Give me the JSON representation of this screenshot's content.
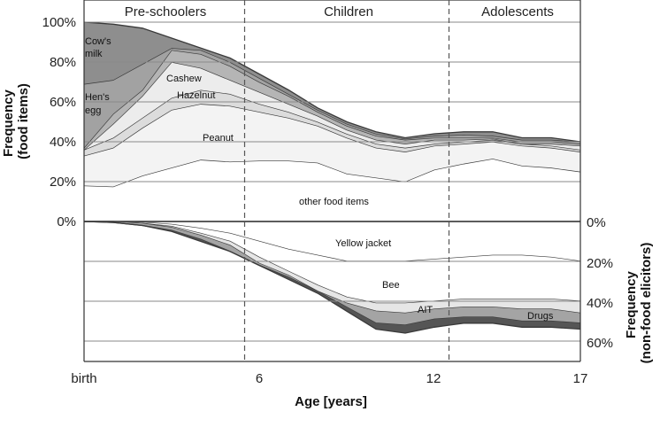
{
  "chart_data": {
    "type": "area",
    "x": [
      0,
      1,
      2,
      3,
      4,
      5,
      6,
      7,
      8,
      9,
      10,
      11,
      12,
      13,
      14,
      15,
      16,
      17
    ],
    "x_ticks": [
      "birth",
      "6",
      "12",
      "17"
    ],
    "xlabel": "Age [years]",
    "ylabel_top": "Frequency\n(food items)",
    "ylabel_bottom": "Frequency\n(non-food elicitors)",
    "yticks_top": [
      "0%",
      "20%",
      "40%",
      "60%",
      "80%",
      "100%"
    ],
    "yticks_bottom": [
      "0%",
      "20%",
      "40%",
      "60%"
    ],
    "age_groups": [
      {
        "label": "Pre-schoolers"
      },
      {
        "label": "Children"
      },
      {
        "label": "Adolescents"
      }
    ],
    "divider_ages": [
      5.5,
      12.5
    ],
    "food_items_cumulative": [
      {
        "name": "other food items",
        "label": "other food items",
        "color": "#ffffff",
        "upper": [
          18,
          17.5,
          23,
          27,
          31,
          30,
          30.5,
          30.5,
          29.5,
          24,
          22,
          20,
          26,
          29,
          31.5,
          28,
          27,
          25
        ]
      },
      {
        "name": "Peanut",
        "label": "Peanut",
        "color": "#f3f3f3",
        "upper": [
          33,
          37,
          47,
          56,
          59,
          58,
          55,
          52,
          48,
          42,
          37,
          35,
          38,
          39,
          40,
          38,
          37,
          35
        ]
      },
      {
        "name": "Hazelnut",
        "label": "Hazelnut",
        "color": "#dcdcdc",
        "upper": [
          36,
          42,
          52,
          62,
          66,
          64,
          59,
          55,
          50,
          44,
          39,
          37,
          39,
          40,
          41,
          39,
          38,
          36
        ]
      },
      {
        "name": "Cashew",
        "label": "Cashew",
        "color": "#ececec",
        "upper": [
          36,
          49,
          63,
          80,
          77,
          71,
          65,
          59,
          53,
          46,
          41,
          39,
          41,
          41,
          41.5,
          39,
          39,
          38
        ]
      },
      {
        "name": "Hen's egg",
        "label": "Hen's egg",
        "color": "#b5b5b5",
        "upper": [
          37,
          54,
          66,
          86,
          84,
          78,
          70,
          63,
          55,
          48,
          43,
          41,
          42,
          42,
          42,
          40,
          40,
          39
        ]
      },
      {
        "name": "Cow's milk",
        "label": "Cow's milk",
        "color": "#a2a2a2",
        "upper": [
          69,
          71,
          79,
          87,
          86,
          80,
          72,
          64,
          56,
          49,
          44,
          41.5,
          43,
          43.5,
          43,
          41,
          41,
          40
        ]
      },
      {
        "name": "other top band",
        "label": "",
        "color": "#8e8e8e",
        "upper": [
          100,
          99,
          97,
          92,
          87,
          82,
          74,
          66,
          57,
          50,
          45,
          42,
          44,
          45,
          45,
          42,
          42,
          40
        ]
      }
    ],
    "non_food_elicitors_cumulative": [
      {
        "name": "Yellow jacket",
        "label": "Yellow jacket",
        "color": "#ffffff",
        "lower": [
          0,
          0,
          0.5,
          1.5,
          3.5,
          6,
          10,
          14,
          17,
          20,
          20,
          20,
          19,
          18,
          17,
          17,
          18,
          20
        ]
      },
      {
        "name": "Bee",
        "label": "Bee",
        "color": "#ffffff",
        "lower": [
          0,
          0,
          1,
          2.5,
          6,
          10,
          18,
          25,
          32,
          38,
          41,
          41,
          40,
          39,
          39,
          39,
          39,
          40
        ]
      },
      {
        "name": "AIT",
        "label": "AIT",
        "color": "#e6e6e6",
        "lower": [
          0,
          0,
          1,
          3,
          7,
          12,
          21,
          27,
          35,
          41,
          45,
          46,
          44,
          43,
          43,
          44,
          44,
          46
        ]
      },
      {
        "name": "Drugs",
        "label": "Drugs",
        "color": "#a4a4a4",
        "lower": [
          0,
          0.5,
          2,
          4.5,
          9,
          15,
          22,
          28,
          35,
          43,
          51,
          52,
          49,
          48,
          48,
          50,
          50,
          51
        ]
      },
      {
        "name": "other bottom band",
        "label": "",
        "color": "#555555",
        "lower": [
          0,
          0.5,
          2,
          5,
          10,
          15,
          22,
          29,
          36,
          45,
          54,
          56,
          53,
          51,
          51,
          53,
          53,
          54
        ]
      }
    ],
    "area_labels": [
      {
        "text": "Cow's\nmilk"
      },
      {
        "text": "Hen's\negg"
      },
      {
        "text": "Cashew"
      },
      {
        "text": "Hazelnut"
      },
      {
        "text": "Peanut"
      },
      {
        "text": "other food items"
      },
      {
        "text": "Yellow jacket"
      },
      {
        "text": "Bee"
      },
      {
        "text": "AIT"
      },
      {
        "text": "Drugs"
      }
    ],
    "grid": true
  }
}
